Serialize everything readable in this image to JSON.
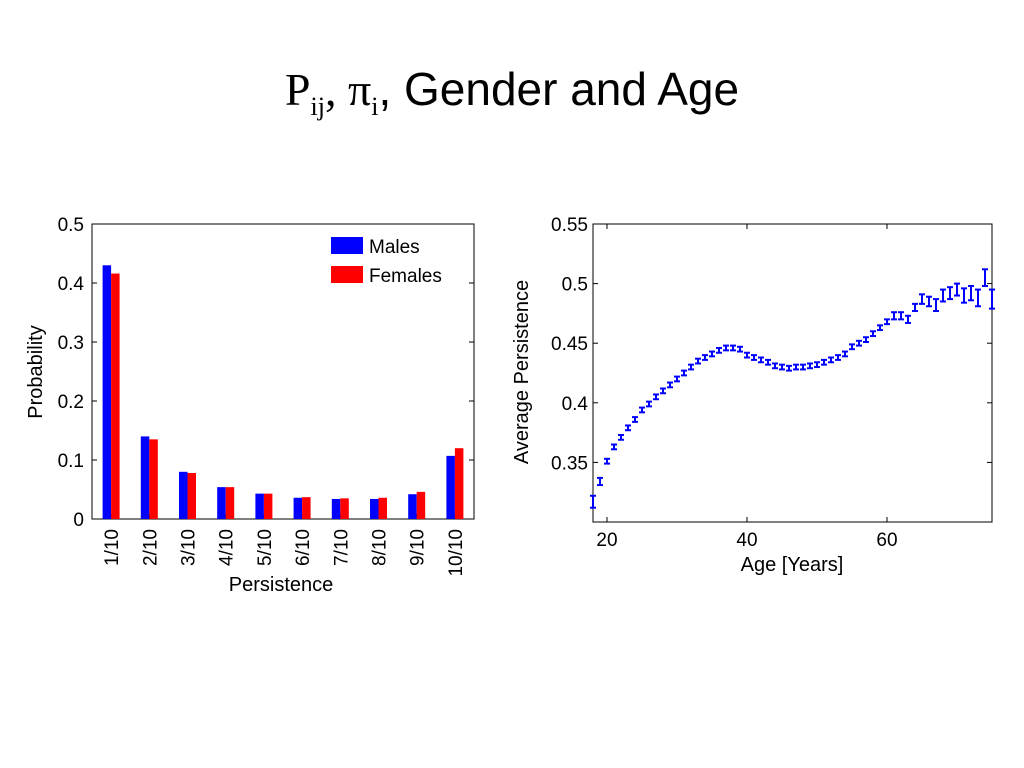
{
  "slide": {
    "title_p": "P",
    "title_ij": "ij",
    "title_sep": ", ",
    "title_pi": "π",
    "title_i": "i",
    "title_rest": ", Gender and Age"
  },
  "chart_data": [
    {
      "type": "bar",
      "title": "",
      "xlabel": "Persistence",
      "ylabel": "Probability",
      "ylim": [
        0,
        0.5
      ],
      "yticks": [
        "0",
        "0.1",
        "0.2",
        "0.3",
        "0.4",
        "0.5"
      ],
      "categories": [
        "1/10",
        "2/10",
        "3/10",
        "4/10",
        "5/10",
        "6/10",
        "7/10",
        "8/10",
        "9/10",
        "10/10"
      ],
      "series": [
        {
          "name": "Males",
          "color": "#0000ff",
          "values": [
            0.43,
            0.14,
            0.08,
            0.054,
            0.043,
            0.036,
            0.034,
            0.034,
            0.042,
            0.107
          ]
        },
        {
          "name": "Females",
          "color": "#ff0000",
          "values": [
            0.416,
            0.135,
            0.078,
            0.054,
            0.043,
            0.037,
            0.035,
            0.036,
            0.046,
            0.12
          ]
        }
      ],
      "legend_position": "top-right",
      "grid": false
    },
    {
      "type": "scatter",
      "title": "",
      "xlabel": "Age [Years]",
      "ylabel": "Average Persistence",
      "xlim": [
        18,
        75
      ],
      "ylim": [
        0.3,
        0.55
      ],
      "xticks": [
        "20",
        "40",
        "60"
      ],
      "yticks": [
        "0.35",
        "0.4",
        "0.45",
        "0.5",
        "0.55"
      ],
      "color": "#0000ff",
      "grid": false,
      "error_bars": true,
      "x": [
        18,
        19,
        20,
        21,
        22,
        23,
        24,
        25,
        26,
        27,
        28,
        29,
        30,
        31,
        32,
        33,
        34,
        35,
        36,
        37,
        38,
        39,
        40,
        41,
        42,
        43,
        44,
        45,
        46,
        47,
        48,
        49,
        50,
        51,
        52,
        53,
        54,
        55,
        56,
        57,
        58,
        59,
        60,
        61,
        62,
        63,
        64,
        65,
        66,
        67,
        68,
        69,
        70,
        71,
        72,
        73,
        74,
        75
      ],
      "y": [
        0.317,
        0.334,
        0.351,
        0.363,
        0.371,
        0.379,
        0.386,
        0.394,
        0.399,
        0.405,
        0.41,
        0.415,
        0.42,
        0.425,
        0.43,
        0.435,
        0.438,
        0.441,
        0.444,
        0.446,
        0.446,
        0.445,
        0.44,
        0.438,
        0.436,
        0.434,
        0.431,
        0.43,
        0.429,
        0.43,
        0.43,
        0.431,
        0.432,
        0.434,
        0.436,
        0.438,
        0.441,
        0.447,
        0.45,
        0.453,
        0.458,
        0.463,
        0.468,
        0.473,
        0.473,
        0.47,
        0.48,
        0.487,
        0.485,
        0.482,
        0.49,
        0.492,
        0.495,
        0.49,
        0.492,
        0.488,
        0.505,
        0.487
      ],
      "err": [
        0.005,
        0.003,
        0.002,
        0.002,
        0.002,
        0.002,
        0.002,
        0.002,
        0.002,
        0.002,
        0.002,
        0.002,
        0.002,
        0.002,
        0.002,
        0.002,
        0.002,
        0.002,
        0.002,
        0.002,
        0.002,
        0.002,
        0.002,
        0.002,
        0.002,
        0.002,
        0.002,
        0.002,
        0.002,
        0.002,
        0.002,
        0.002,
        0.002,
        0.002,
        0.002,
        0.002,
        0.002,
        0.002,
        0.002,
        0.002,
        0.002,
        0.002,
        0.002,
        0.003,
        0.003,
        0.003,
        0.003,
        0.004,
        0.004,
        0.005,
        0.005,
        0.005,
        0.005,
        0.006,
        0.006,
        0.007,
        0.007,
        0.008
      ]
    }
  ]
}
